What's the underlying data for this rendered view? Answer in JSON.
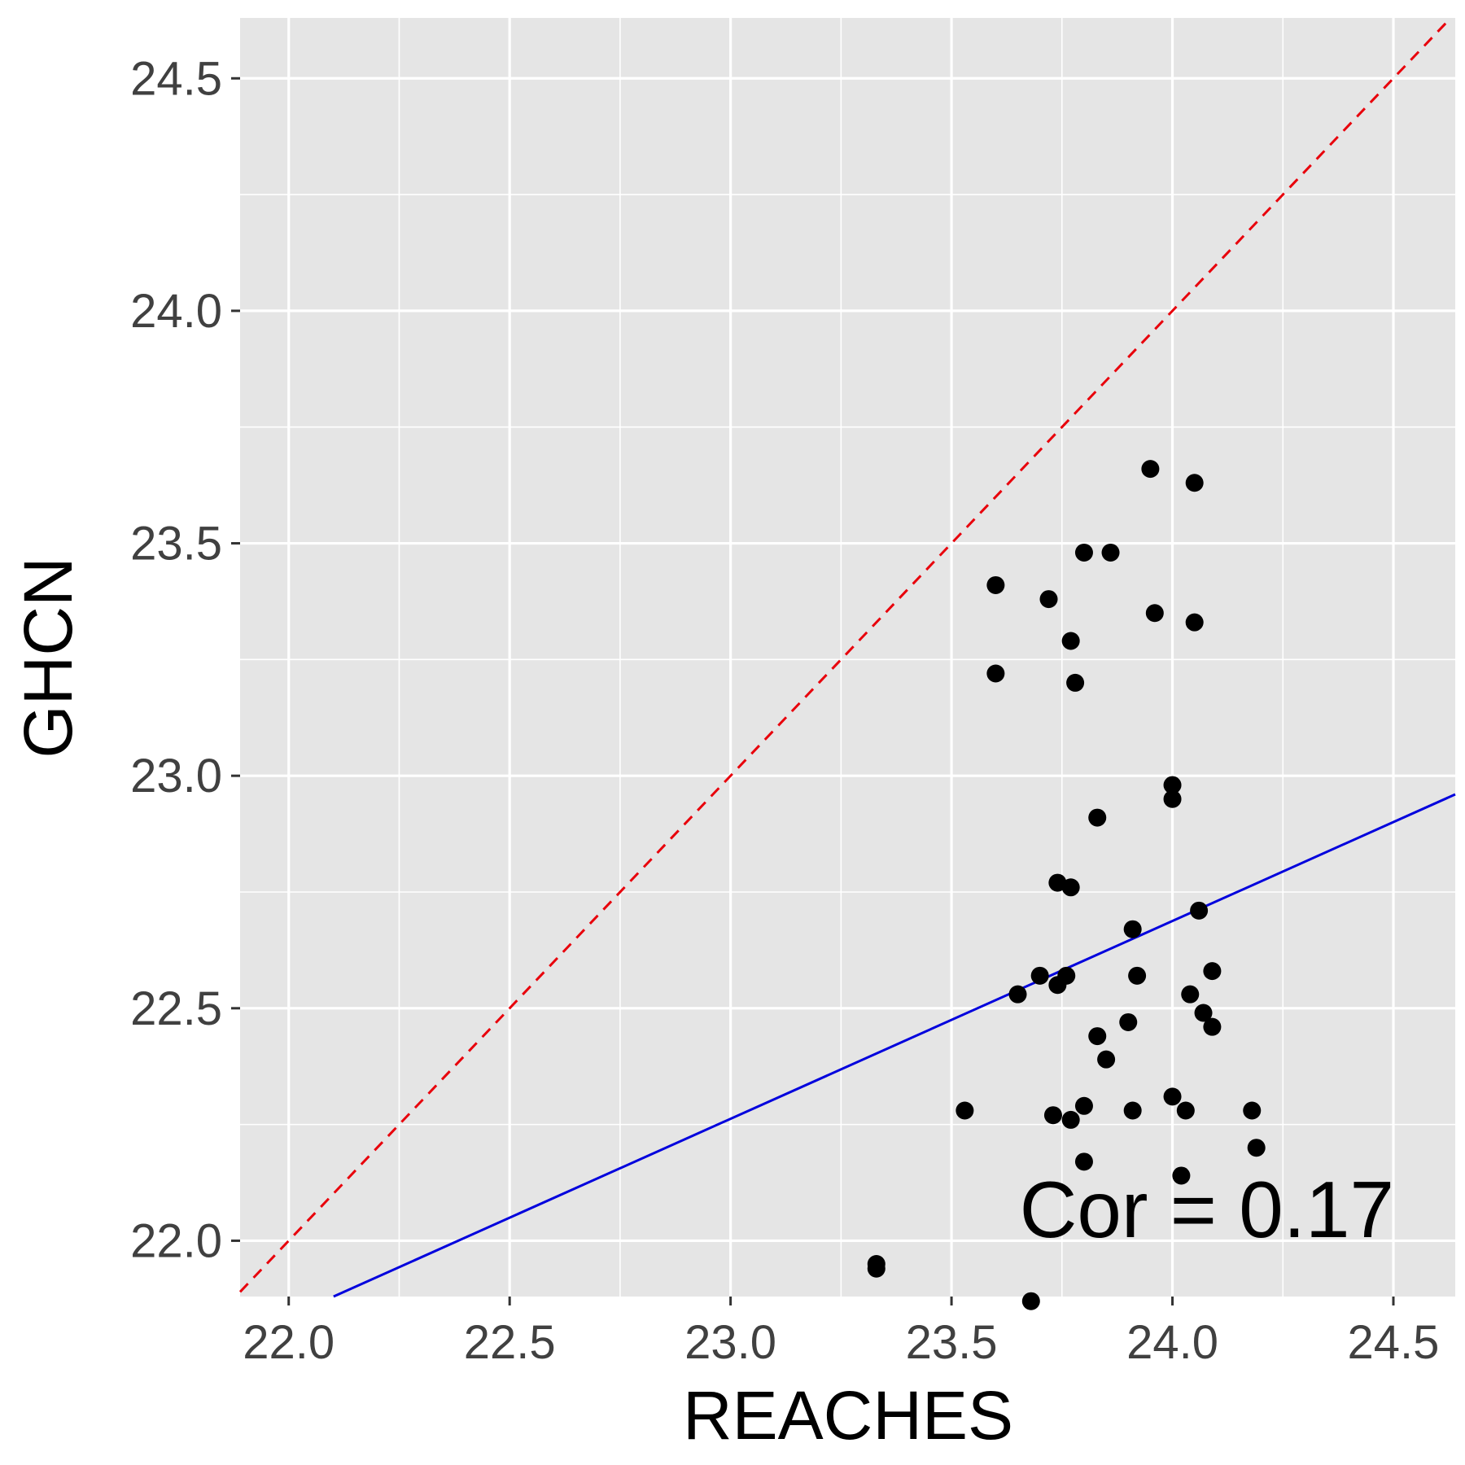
{
  "chart_data": {
    "type": "scatter",
    "xlabel": "REACHES",
    "ylabel": "GHCN",
    "xlim": [
      21.89,
      24.64
    ],
    "ylim": [
      21.88,
      24.63
    ],
    "x_ticks": [
      22.0,
      22.5,
      23.0,
      23.5,
      24.0,
      24.5
    ],
    "y_ticks": [
      22.0,
      22.5,
      23.0,
      23.5,
      24.0,
      24.5
    ],
    "x_tick_labels": [
      "22.0",
      "22.5",
      "23.0",
      "23.5",
      "24.0",
      "24.5"
    ],
    "y_tick_labels": [
      "22.0",
      "22.5",
      "23.0",
      "23.5",
      "24.0",
      "24.5"
    ],
    "grid": true,
    "annotation": "Cor = 0.17",
    "reference_line": {
      "type": "identity",
      "style": "dashed",
      "color": "#e8000b"
    },
    "fit_line": {
      "x": [
        21.89,
        24.64
      ],
      "y": [
        21.79,
        22.96
      ],
      "color": "#0000dd"
    },
    "colors": {
      "panel": "#e5e5e5",
      "grid": "#ffffff",
      "points": "#000000"
    },
    "points": [
      {
        "x": 23.95,
        "y": 23.66
      },
      {
        "x": 24.05,
        "y": 23.63
      },
      {
        "x": 23.8,
        "y": 23.48
      },
      {
        "x": 23.86,
        "y": 23.48
      },
      {
        "x": 23.6,
        "y": 23.41
      },
      {
        "x": 23.72,
        "y": 23.38
      },
      {
        "x": 23.96,
        "y": 23.35
      },
      {
        "x": 24.05,
        "y": 23.33
      },
      {
        "x": 23.77,
        "y": 23.29
      },
      {
        "x": 23.6,
        "y": 23.22
      },
      {
        "x": 23.78,
        "y": 23.2
      },
      {
        "x": 24.0,
        "y": 22.98
      },
      {
        "x": 24.0,
        "y": 22.95
      },
      {
        "x": 23.83,
        "y": 22.91
      },
      {
        "x": 23.74,
        "y": 22.77
      },
      {
        "x": 23.77,
        "y": 22.76
      },
      {
        "x": 24.06,
        "y": 22.71
      },
      {
        "x": 23.91,
        "y": 22.67
      },
      {
        "x": 24.09,
        "y": 22.58
      },
      {
        "x": 23.92,
        "y": 22.57
      },
      {
        "x": 23.7,
        "y": 22.57
      },
      {
        "x": 23.76,
        "y": 22.57
      },
      {
        "x": 23.74,
        "y": 22.55
      },
      {
        "x": 23.65,
        "y": 22.53
      },
      {
        "x": 24.04,
        "y": 22.53
      },
      {
        "x": 24.07,
        "y": 22.49
      },
      {
        "x": 23.9,
        "y": 22.47
      },
      {
        "x": 24.09,
        "y": 22.46
      },
      {
        "x": 23.83,
        "y": 22.44
      },
      {
        "x": 23.85,
        "y": 22.39
      },
      {
        "x": 24.0,
        "y": 22.31
      },
      {
        "x": 23.8,
        "y": 22.29
      },
      {
        "x": 24.18,
        "y": 22.28
      },
      {
        "x": 23.53,
        "y": 22.28
      },
      {
        "x": 23.91,
        "y": 22.28
      },
      {
        "x": 24.03,
        "y": 22.28
      },
      {
        "x": 23.73,
        "y": 22.27
      },
      {
        "x": 23.77,
        "y": 22.26
      },
      {
        "x": 24.19,
        "y": 22.2
      },
      {
        "x": 23.8,
        "y": 22.17
      },
      {
        "x": 24.02,
        "y": 22.14
      },
      {
        "x": 23.33,
        "y": 21.95
      },
      {
        "x": 23.33,
        "y": 21.94
      },
      {
        "x": 23.68,
        "y": 21.87
      }
    ]
  }
}
